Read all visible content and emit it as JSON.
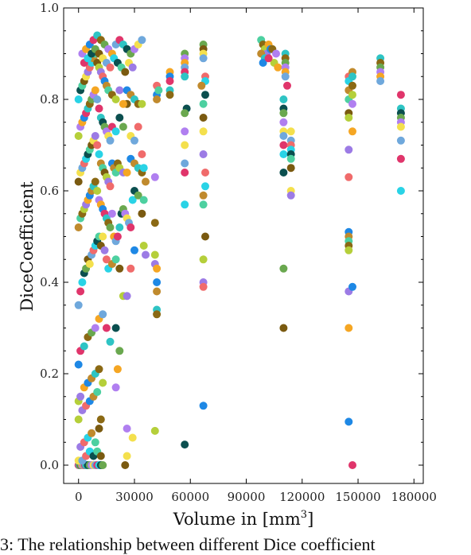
{
  "chart_data": {
    "type": "scatter",
    "title": "",
    "xlabel_text": "Volume in [mm",
    "xlabel_sup": "3",
    "xlabel_end": "]",
    "ylabel": "DiceCoefficient",
    "xlim": [
      -8000,
      185000
    ],
    "ylim": [
      -0.04,
      1.0
    ],
    "xticks": [
      0,
      30000,
      60000,
      90000,
      120000,
      150000,
      180000
    ],
    "xtick_labels": [
      "0",
      "30000",
      "60000",
      "90000",
      "120000",
      "150000",
      "180000"
    ],
    "yticks": [
      0.0,
      0.2,
      0.4,
      0.6,
      0.8,
      1.0
    ],
    "ytick_labels": [
      "0.0",
      "0.2",
      "0.4",
      "0.6",
      "0.8",
      "1.0"
    ],
    "grid": false,
    "legend": "none",
    "series_colors": [
      "#e0356b",
      "#f06b6b",
      "#f5a623",
      "#f4e04d",
      "#b5cf3a",
      "#6aa84f",
      "#4dd0a0",
      "#2ec4c4",
      "#29d3e6",
      "#1e88e5",
      "#6fa8dc",
      "#9c7be5",
      "#b07ff0",
      "#7a5a10",
      "#8b6914",
      "#0b4f4f",
      "#c08a2d"
    ],
    "points": [
      [
        0,
        0.0
      ],
      [
        500,
        0.0
      ],
      [
        1000,
        0.0
      ],
      [
        1500,
        0.0
      ],
      [
        2000,
        0.0
      ],
      [
        2500,
        0.0
      ],
      [
        3000,
        0.0
      ],
      [
        3500,
        0.0
      ],
      [
        4000,
        0.0
      ],
      [
        5000,
        0.0
      ],
      [
        6000,
        0.0
      ],
      [
        7000,
        0.0
      ],
      [
        8000,
        0.0
      ],
      [
        9000,
        0.0
      ],
      [
        10000,
        0.0
      ],
      [
        11000,
        0.0
      ],
      [
        12000,
        0.0
      ],
      [
        13000,
        0.0
      ],
      [
        25000,
        0.0
      ],
      [
        0,
        0.01
      ],
      [
        2000,
        0.01
      ],
      [
        4000,
        0.02
      ],
      [
        6000,
        0.03
      ],
      [
        8000,
        0.02
      ],
      [
        10000,
        0.03
      ],
      [
        12000,
        0.02
      ],
      [
        26000,
        0.02
      ],
      [
        1000,
        0.04
      ],
      [
        3000,
        0.05
      ],
      [
        5000,
        0.06
      ],
      [
        7000,
        0.07
      ],
      [
        9000,
        0.05
      ],
      [
        11000,
        0.08
      ],
      [
        0,
        0.1
      ],
      [
        2000,
        0.12
      ],
      [
        4000,
        0.13
      ],
      [
        6000,
        0.14
      ],
      [
        8000,
        0.15
      ],
      [
        10000,
        0.16
      ],
      [
        12000,
        0.1
      ],
      [
        0,
        0.14
      ],
      [
        1000,
        0.15
      ],
      [
        3000,
        0.17
      ],
      [
        5000,
        0.18
      ],
      [
        7000,
        0.19
      ],
      [
        9000,
        0.2
      ],
      [
        11000,
        0.21
      ],
      [
        13000,
        0.18
      ],
      [
        20000,
        0.17
      ],
      [
        21000,
        0.21
      ],
      [
        0,
        0.22
      ],
      [
        1000,
        0.25
      ],
      [
        3000,
        0.26
      ],
      [
        5000,
        0.28
      ],
      [
        7000,
        0.29
      ],
      [
        9000,
        0.3
      ],
      [
        11000,
        0.32
      ],
      [
        13000,
        0.33
      ],
      [
        15000,
        0.3
      ],
      [
        17000,
        0.27
      ],
      [
        20000,
        0.3
      ],
      [
        22000,
        0.25
      ],
      [
        26000,
        0.08
      ],
      [
        29000,
        0.06
      ],
      [
        0,
        0.35
      ],
      [
        1000,
        0.38
      ],
      [
        2000,
        0.4
      ],
      [
        3000,
        0.42
      ],
      [
        4000,
        0.43
      ],
      [
        5000,
        0.45
      ],
      [
        6000,
        0.44
      ],
      [
        7000,
        0.46
      ],
      [
        8000,
        0.47
      ],
      [
        9000,
        0.48
      ],
      [
        10000,
        0.49
      ],
      [
        11000,
        0.5
      ],
      [
        12000,
        0.48
      ],
      [
        13000,
        0.5
      ],
      [
        14000,
        0.47
      ],
      [
        15000,
        0.45
      ],
      [
        16000,
        0.43
      ],
      [
        18000,
        0.44
      ],
      [
        20000,
        0.45
      ],
      [
        22000,
        0.43
      ],
      [
        24000,
        0.37
      ],
      [
        26000,
        0.37
      ],
      [
        28000,
        0.43
      ],
      [
        30000,
        0.47
      ],
      [
        0,
        0.52
      ],
      [
        1000,
        0.54
      ],
      [
        2000,
        0.55
      ],
      [
        3000,
        0.56
      ],
      [
        4000,
        0.57
      ],
      [
        5000,
        0.58
      ],
      [
        6000,
        0.59
      ],
      [
        7000,
        0.6
      ],
      [
        8000,
        0.61
      ],
      [
        9000,
        0.62
      ],
      [
        10000,
        0.6
      ],
      [
        11000,
        0.58
      ],
      [
        12000,
        0.57
      ],
      [
        13000,
        0.56
      ],
      [
        14000,
        0.55
      ],
      [
        15000,
        0.54
      ],
      [
        16000,
        0.53
      ],
      [
        17000,
        0.52
      ],
      [
        18000,
        0.55
      ],
      [
        19000,
        0.5
      ],
      [
        20000,
        0.49
      ],
      [
        21000,
        0.5
      ],
      [
        22000,
        0.52
      ],
      [
        23000,
        0.55
      ],
      [
        24000,
        0.56
      ],
      [
        25000,
        0.55
      ],
      [
        26000,
        0.54
      ],
      [
        27000,
        0.53
      ],
      [
        28000,
        0.52
      ],
      [
        29000,
        0.58
      ],
      [
        30000,
        0.6
      ],
      [
        32000,
        0.59
      ],
      [
        0,
        0.62
      ],
      [
        1000,
        0.64
      ],
      [
        2000,
        0.65
      ],
      [
        3000,
        0.66
      ],
      [
        4000,
        0.67
      ],
      [
        5000,
        0.68
      ],
      [
        6000,
        0.69
      ],
      [
        7000,
        0.7
      ],
      [
        8000,
        0.71
      ],
      [
        9000,
        0.72
      ],
      [
        10000,
        0.7
      ],
      [
        11000,
        0.68
      ],
      [
        12000,
        0.66
      ],
      [
        13000,
        0.65
      ],
      [
        14000,
        0.64
      ],
      [
        15000,
        0.63
      ],
      [
        16000,
        0.62
      ],
      [
        17000,
        0.61
      ],
      [
        18000,
        0.66
      ],
      [
        19000,
        0.65
      ],
      [
        20000,
        0.64
      ],
      [
        21000,
        0.66
      ],
      [
        22000,
        0.65
      ],
      [
        24000,
        0.64
      ],
      [
        26000,
        0.64
      ],
      [
        28000,
        0.67
      ],
      [
        30000,
        0.66
      ],
      [
        32000,
        0.65
      ],
      [
        34000,
        0.64
      ],
      [
        0,
        0.72
      ],
      [
        1000,
        0.74
      ],
      [
        2000,
        0.75
      ],
      [
        3000,
        0.76
      ],
      [
        4000,
        0.77
      ],
      [
        5000,
        0.78
      ],
      [
        6000,
        0.79
      ],
      [
        7000,
        0.8
      ],
      [
        8000,
        0.81
      ],
      [
        9000,
        0.82
      ],
      [
        10000,
        0.8
      ],
      [
        11000,
        0.78
      ],
      [
        12000,
        0.76
      ],
      [
        13000,
        0.75
      ],
      [
        14000,
        0.74
      ],
      [
        15000,
        0.73
      ],
      [
        16000,
        0.72
      ],
      [
        17000,
        0.71
      ],
      [
        18000,
        0.74
      ],
      [
        20000,
        0.73
      ],
      [
        22000,
        0.76
      ],
      [
        24000,
        0.74
      ],
      [
        26000,
        0.79
      ],
      [
        28000,
        0.72
      ],
      [
        30000,
        0.71
      ],
      [
        32000,
        0.74
      ],
      [
        0,
        0.8
      ],
      [
        1000,
        0.82
      ],
      [
        2000,
        0.83
      ],
      [
        3000,
        0.84
      ],
      [
        4000,
        0.85
      ],
      [
        5000,
        0.86
      ],
      [
        6000,
        0.87
      ],
      [
        7000,
        0.88
      ],
      [
        8000,
        0.89
      ],
      [
        9000,
        0.9
      ],
      [
        10000,
        0.88
      ],
      [
        11000,
        0.87
      ],
      [
        12000,
        0.86
      ],
      [
        13000,
        0.85
      ],
      [
        14000,
        0.84
      ],
      [
        15000,
        0.83
      ],
      [
        16000,
        0.82
      ],
      [
        18000,
        0.81
      ],
      [
        20000,
        0.8
      ],
      [
        22000,
        0.82
      ],
      [
        24000,
        0.79
      ],
      [
        26000,
        0.82
      ],
      [
        28000,
        0.81
      ],
      [
        30000,
        0.8
      ],
      [
        32000,
        0.79
      ],
      [
        34000,
        0.79
      ],
      [
        2000,
        0.9
      ],
      [
        4000,
        0.91
      ],
      [
        6000,
        0.92
      ],
      [
        8000,
        0.93
      ],
      [
        10000,
        0.94
      ],
      [
        12000,
        0.93
      ],
      [
        14000,
        0.92
      ],
      [
        16000,
        0.91
      ],
      [
        18000,
        0.9
      ],
      [
        20000,
        0.92
      ],
      [
        22000,
        0.93
      ],
      [
        24000,
        0.92
      ],
      [
        26000,
        0.91
      ],
      [
        28000,
        0.9
      ],
      [
        30000,
        0.91
      ],
      [
        32000,
        0.92
      ],
      [
        34000,
        0.93
      ],
      [
        3000,
        0.88
      ],
      [
        5000,
        0.89
      ],
      [
        7000,
        0.9
      ],
      [
        9000,
        0.91
      ],
      [
        11000,
        0.9
      ],
      [
        13000,
        0.89
      ],
      [
        15000,
        0.88
      ],
      [
        17000,
        0.87
      ],
      [
        19000,
        0.89
      ],
      [
        21000,
        0.88
      ],
      [
        23000,
        0.87
      ],
      [
        25000,
        0.86
      ],
      [
        27000,
        0.88
      ],
      [
        29000,
        0.87
      ],
      [
        34000,
        0.68
      ],
      [
        35000,
        0.65
      ],
      [
        36000,
        0.62
      ],
      [
        35000,
        0.58
      ],
      [
        34000,
        0.55
      ],
      [
        35000,
        0.48
      ],
      [
        36000,
        0.46
      ],
      [
        42000,
        0.83
      ],
      [
        42000,
        0.81
      ],
      [
        42000,
        0.8
      ],
      [
        43000,
        0.82
      ],
      [
        41000,
        0.53
      ],
      [
        41000,
        0.46
      ],
      [
        41000,
        0.44
      ],
      [
        42000,
        0.43
      ],
      [
        42000,
        0.4
      ],
      [
        42000,
        0.38
      ],
      [
        42000,
        0.34
      ],
      [
        42000,
        0.33
      ],
      [
        41000,
        0.075
      ],
      [
        41000,
        0.63
      ],
      [
        49000,
        0.86
      ],
      [
        49000,
        0.85
      ],
      [
        49000,
        0.84
      ],
      [
        49000,
        0.82
      ],
      [
        49000,
        0.81
      ],
      [
        57000,
        0.9
      ],
      [
        57000,
        0.89
      ],
      [
        57000,
        0.88
      ],
      [
        57000,
        0.87
      ],
      [
        57000,
        0.86
      ],
      [
        57000,
        0.85
      ],
      [
        58000,
        0.78
      ],
      [
        57000,
        0.77
      ],
      [
        57000,
        0.73
      ],
      [
        57000,
        0.7
      ],
      [
        57000,
        0.66
      ],
      [
        57000,
        0.64
      ],
      [
        57000,
        0.57
      ],
      [
        57000,
        0.045
      ],
      [
        67000,
        0.92
      ],
      [
        67000,
        0.91
      ],
      [
        67000,
        0.9
      ],
      [
        67000,
        0.89
      ],
      [
        68000,
        0.85
      ],
      [
        68000,
        0.84
      ],
      [
        68000,
        0.81
      ],
      [
        67000,
        0.79
      ],
      [
        67000,
        0.76
      ],
      [
        67000,
        0.73
      ],
      [
        67000,
        0.68
      ],
      [
        68000,
        0.64
      ],
      [
        68000,
        0.61
      ],
      [
        67000,
        0.59
      ],
      [
        67000,
        0.57
      ],
      [
        68000,
        0.5
      ],
      [
        67000,
        0.45
      ],
      [
        67000,
        0.4
      ],
      [
        67000,
        0.39
      ],
      [
        67000,
        0.13
      ],
      [
        66000,
        0.83
      ],
      [
        98000,
        0.93
      ],
      [
        99000,
        0.92
      ],
      [
        100000,
        0.91
      ],
      [
        101000,
        0.9
      ],
      [
        102000,
        0.92
      ],
      [
        103000,
        0.91
      ],
      [
        98000,
        0.9
      ],
      [
        100000,
        0.89
      ],
      [
        104000,
        0.91
      ],
      [
        105000,
        0.88
      ],
      [
        106000,
        0.9
      ],
      [
        107000,
        0.87
      ],
      [
        99000,
        0.88
      ],
      [
        102000,
        0.89
      ],
      [
        111000,
        0.9
      ],
      [
        111000,
        0.89
      ],
      [
        111000,
        0.88
      ],
      [
        111000,
        0.87
      ],
      [
        111000,
        0.86
      ],
      [
        111000,
        0.85
      ],
      [
        112000,
        0.83
      ],
      [
        110000,
        0.8
      ],
      [
        110000,
        0.78
      ],
      [
        110000,
        0.77
      ],
      [
        110000,
        0.75
      ],
      [
        110000,
        0.73
      ],
      [
        110000,
        0.72
      ],
      [
        110000,
        0.7
      ],
      [
        110000,
        0.68
      ],
      [
        110000,
        0.64
      ],
      [
        110000,
        0.43
      ],
      [
        110000,
        0.3
      ],
      [
        114000,
        0.73
      ],
      [
        114000,
        0.71
      ],
      [
        114000,
        0.7
      ],
      [
        114000,
        0.69
      ],
      [
        114000,
        0.68
      ],
      [
        114000,
        0.67
      ],
      [
        114000,
        0.65
      ],
      [
        114000,
        0.6
      ],
      [
        114000,
        0.59
      ],
      [
        145000,
        0.85
      ],
      [
        145000,
        0.84
      ],
      [
        145000,
        0.82
      ],
      [
        145000,
        0.8
      ],
      [
        145000,
        0.77
      ],
      [
        145000,
        0.76
      ],
      [
        145000,
        0.69
      ],
      [
        145000,
        0.63
      ],
      [
        145000,
        0.51
      ],
      [
        145000,
        0.5
      ],
      [
        145000,
        0.49
      ],
      [
        145000,
        0.48
      ],
      [
        145000,
        0.47
      ],
      [
        145000,
        0.38
      ],
      [
        145000,
        0.3
      ],
      [
        145000,
        0.095
      ],
      [
        147000,
        0.86
      ],
      [
        147000,
        0.85
      ],
      [
        147000,
        0.83
      ],
      [
        147000,
        0.81
      ],
      [
        147000,
        0.79
      ],
      [
        147000,
        0.73
      ],
      [
        147000,
        0.39
      ],
      [
        147000,
        0.0
      ],
      [
        162000,
        0.89
      ],
      [
        162000,
        0.88
      ],
      [
        162000,
        0.87
      ],
      [
        162000,
        0.86
      ],
      [
        162000,
        0.85
      ],
      [
        162000,
        0.84
      ],
      [
        173000,
        0.81
      ],
      [
        173000,
        0.78
      ],
      [
        173000,
        0.77
      ],
      [
        173000,
        0.76
      ],
      [
        173000,
        0.75
      ],
      [
        173000,
        0.74
      ],
      [
        173000,
        0.71
      ],
      [
        173000,
        0.67
      ],
      [
        173000,
        0.6
      ]
    ]
  },
  "caption": "3: The relationship between different Dice coefficient"
}
